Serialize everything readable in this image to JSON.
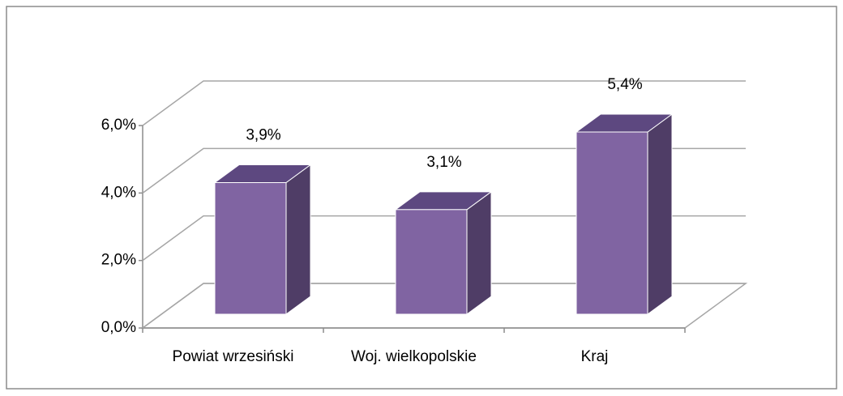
{
  "chart_data": {
    "type": "bar3d",
    "categories": [
      "Powiat wrzesiński",
      "Woj. wielkopolskie",
      "Kraj"
    ],
    "values": [
      3.9,
      3.1,
      5.4
    ],
    "value_labels": [
      "3,9%",
      "3,1%",
      "5,4%"
    ],
    "color": "#8064a2",
    "ylim": [
      0,
      6
    ],
    "yticks": [
      {
        "value": 0,
        "label": "0,0%"
      },
      {
        "value": 2,
        "label": "2,0%"
      },
      {
        "value": 4,
        "label": "4,0%"
      },
      {
        "value": 6,
        "label": "6,0%"
      }
    ],
    "grid": true
  }
}
